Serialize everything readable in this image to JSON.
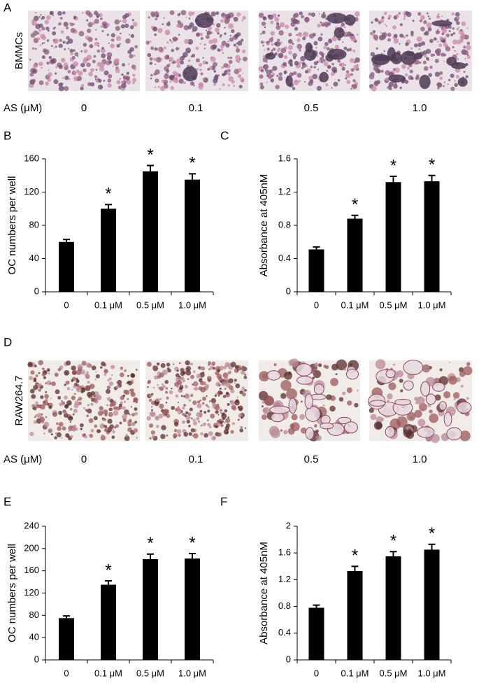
{
  "photo_panels": [
    {
      "panel": "A",
      "row_label": "BMMCs",
      "dose_label": "AS (μM)",
      "doses": [
        "0",
        "0.1",
        "0.5",
        "1.0"
      ]
    },
    {
      "panel": "D",
      "row_label": "RAW264.7",
      "dose_label": "AS (μM)",
      "doses": [
        "0",
        "0.1",
        "0.5",
        "1.0"
      ]
    }
  ],
  "chart_data": [
    {
      "type": "bar",
      "panel": "B",
      "y_label": "OC  numbers per well",
      "categories": [
        "0",
        "0.1 μM",
        "0.5 μM",
        "1.0 μM"
      ],
      "values": [
        60,
        100,
        145,
        135
      ],
      "errors": [
        3,
        5,
        7,
        7
      ],
      "significance": [
        null,
        "*",
        "*",
        "*"
      ],
      "color": "#000000",
      "ylim": [
        0,
        160
      ],
      "yticks": [
        0,
        40,
        80,
        120,
        160
      ]
    },
    {
      "type": "bar",
      "panel": "C",
      "y_label": "Absorbance at 405nM",
      "categories": [
        "0",
        "0.1 μM",
        "0.5 μM",
        "1.0 μM"
      ],
      "values": [
        0.51,
        0.88,
        1.32,
        1.33
      ],
      "errors": [
        0.03,
        0.04,
        0.07,
        0.07
      ],
      "significance": [
        null,
        "*",
        "*",
        "*"
      ],
      "color": "#000000",
      "ylim": [
        0,
        1.6
      ],
      "yticks": [
        0,
        0.4,
        0.8,
        1.2,
        1.6
      ]
    },
    {
      "type": "bar",
      "panel": "E",
      "y_label": "OC  numbers per well",
      "categories": [
        "0",
        "0.1 μM",
        "0.5 μM",
        "1.0 μM"
      ],
      "values": [
        75,
        135,
        181,
        182
      ],
      "errors": [
        4,
        7,
        9,
        9
      ],
      "significance": [
        null,
        "*",
        "*",
        "*"
      ],
      "color": "#000000",
      "ylim": [
        0,
        240
      ],
      "yticks": [
        0,
        40,
        80,
        120,
        160,
        200,
        240
      ]
    },
    {
      "type": "bar",
      "panel": "F",
      "y_label": "Absorbance at 405nM",
      "categories": [
        "0",
        "0.1 μM",
        "0.5 μM",
        "1.0 μM"
      ],
      "values": [
        0.78,
        1.33,
        1.55,
        1.65
      ],
      "errors": [
        0.04,
        0.07,
        0.07,
        0.08
      ],
      "significance": [
        null,
        "*",
        "*",
        "*"
      ],
      "color": "#000000",
      "ylim": [
        0,
        2
      ],
      "yticks": [
        0,
        0.4,
        0.8,
        1.2,
        1.6,
        2
      ]
    }
  ]
}
